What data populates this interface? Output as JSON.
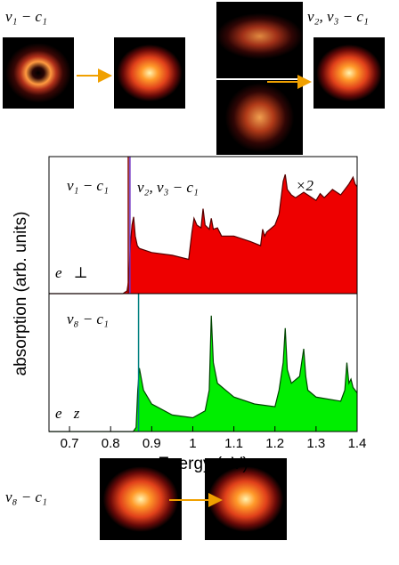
{
  "figure": {
    "labels": [
      "v₁ − c₁",
      "v₂, v₃ − c₁",
      "v₈ − c₁"
    ]
  },
  "chart_data": [
    {
      "type": "area",
      "color": "#ee0000",
      "edge": "#550000",
      "x": [
        0.65,
        0.83,
        0.84,
        0.844,
        0.848,
        0.852,
        0.856,
        0.86,
        0.865,
        0.87,
        0.9,
        0.95,
        0.99,
        0.998,
        1.003,
        1.01,
        1.02,
        1.025,
        1.03,
        1.04,
        1.045,
        1.05,
        1.06,
        1.065,
        1.07,
        1.1,
        1.14,
        1.165,
        1.17,
        1.175,
        1.18,
        1.2,
        1.21,
        1.22,
        1.225,
        1.23,
        1.24,
        1.25,
        1.27,
        1.28,
        1.3,
        1.31,
        1.32,
        1.34,
        1.36,
        1.38,
        1.39,
        1.395,
        1.4
      ],
      "values": [
        0,
        0,
        0.02,
        0.1,
        0.35,
        0.5,
        0.56,
        0.42,
        0.35,
        0.33,
        0.3,
        0.28,
        0.25,
        0.45,
        0.55,
        0.5,
        0.48,
        0.62,
        0.5,
        0.47,
        0.55,
        0.47,
        0.48,
        0.45,
        0.42,
        0.42,
        0.38,
        0.35,
        0.47,
        0.42,
        0.45,
        0.5,
        0.58,
        0.82,
        0.87,
        0.76,
        0.72,
        0.7,
        0.74,
        0.72,
        0.68,
        0.73,
        0.7,
        0.76,
        0.72,
        0.8,
        0.85,
        0.8,
        0.78
      ],
      "peaks": [
        {
          "x": 0.843,
          "value": 1,
          "color": "#800000"
        },
        {
          "x": 0.847,
          "value": 1,
          "color": "#7030c0"
        }
      ],
      "annotations": [
        "v₁ − c₁",
        "v₂, v₃ − c₁",
        "×2",
        "e⃗⊥"
      ],
      "xlim": [
        0.65,
        1.4
      ],
      "ylim": [
        0,
        1
      ]
    },
    {
      "type": "area",
      "color": "#00ee00",
      "edge": "#004400",
      "x": [
        0.65,
        0.855,
        0.862,
        0.866,
        0.87,
        0.875,
        0.88,
        0.9,
        0.95,
        1.0,
        1.03,
        1.04,
        1.045,
        1.05,
        1.06,
        1.1,
        1.15,
        1.2,
        1.21,
        1.22,
        1.225,
        1.23,
        1.24,
        1.26,
        1.27,
        1.275,
        1.28,
        1.3,
        1.36,
        1.37,
        1.375,
        1.38,
        1.385,
        1.39,
        1.4
      ],
      "values": [
        0,
        0,
        0.03,
        0.3,
        0.46,
        0.38,
        0.3,
        0.2,
        0.12,
        0.1,
        0.15,
        0.3,
        0.84,
        0.5,
        0.35,
        0.25,
        0.2,
        0.18,
        0.3,
        0.5,
        0.75,
        0.45,
        0.35,
        0.4,
        0.6,
        0.4,
        0.3,
        0.25,
        0.22,
        0.3,
        0.5,
        0.35,
        0.38,
        0.32,
        0.28
      ],
      "peaks": [
        {
          "x": 0.868,
          "value": 1,
          "color": "#008080"
        }
      ],
      "annotations": [
        "v₈ − c₁",
        "e⃗z"
      ],
      "xlim": [
        0.65,
        1.4
      ],
      "ylim": [
        0,
        1
      ],
      "xticks": [
        0.7,
        0.8,
        0.9,
        1,
        1.1,
        1.2,
        1.3,
        1.4
      ],
      "xlabel": "Energy (eV)",
      "ylabel": "absorption (arb. units)"
    }
  ]
}
